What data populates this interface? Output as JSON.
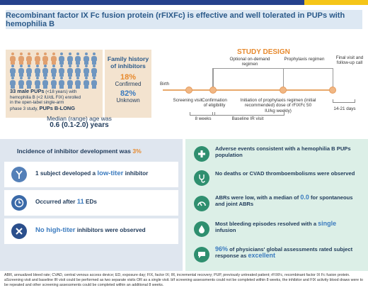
{
  "title": "Recombinant factor IX Fc fusion protein (rFIXFc) is effective and well tolerated in PUPs with hemophilia B",
  "cohort": {
    "line1": "33 male PUPs",
    "line1b": " (<18 years) with",
    "line2": "hemophilia B (<2 IU/dL FIX) enrolled",
    "line3": "in the open-label single-arm",
    "line4": "phase 3 study, ",
    "study_name": "PUPs B-LONG"
  },
  "family": {
    "heading": "Family history of inhibitors",
    "confirmed_pct": "18%",
    "confirmed_label": "Confirmed",
    "unknown_pct": "82%",
    "unknown_label": "Unknown"
  },
  "median": {
    "label": "Median (range) age was",
    "value": "0.6 (0.1-2.0) years"
  },
  "study_design": {
    "title": "STUDY DESIGN",
    "birth": "Birth",
    "screening": "Screening visit",
    "confirmation": "Confirmation of eligibility",
    "optional": "Optional on-demand regimen",
    "prophylaxis": "Prophylaxis regimen",
    "final": "Final visit and follow-up call",
    "initiation": "Initiation of prophylaxis regimen (initial recommended) dose of rFIXFc 50 IU/kg weekly)",
    "weeks8": "8 weeks",
    "baseline": "Baseline IR visit",
    "days": "14-21 days"
  },
  "left_results": {
    "incidence_label": "Incidence of inhibitor development was ",
    "incidence_value": "3%",
    "low_titer_pre": "1 subject developed a ",
    "low_titer_hl": "low-titer",
    "low_titer_post": " inhibitor",
    "occurred_pre": "Occurred after ",
    "occurred_hl": "11",
    "occurred_post": " EDs",
    "high_titer_hl": "No high-titer",
    "high_titer_post": " inhibitors were observed"
  },
  "right_results": {
    "ae": "Adverse events consistent with a hemophilia B PUPs population",
    "deaths": "No deaths or CVAD thromboembolisms were observed",
    "abr_pre": "ABRs were low, with a median of ",
    "abr_hl": "0.0",
    "abr_post": " for spontaneous and joint ABRs",
    "bleed_pre": "Most bleeding episodes resolved with a ",
    "bleed_hl": "single",
    "bleed_post": " infusion",
    "assess_hl": "96%",
    "assess_mid": " of physicians' global assessments rated subject response as ",
    "assess_hl2": "excellent"
  },
  "footnote": "ABR, annualized bleed rate; CVAD, central venous access device; ED, exposure day; FIX, factor IX; IR, incremental recovery; PUP, previously untreated patient; rFIXFc, recombinant factor IX Fc fusion protein. aScreening visit and baseline IR visit could be performed as two separate visits OR as a single visit. bIf screening assessments could not be completed within 8 weeks, the inhibitor and FIX activity blood draws were to be repeated and other screening assessments could be completed within an additional 8 weeks.",
  "colors": {
    "accent_orange": "#e78a2e",
    "accent_blue": "#3b7bbf",
    "navy": "#25418c",
    "yellow": "#f5c518"
  },
  "icons": [
    "antibody-icon",
    "clock-icon",
    "no-icon",
    "plus-icon",
    "stethoscope-icon",
    "rate-gauge-icon",
    "drop-icon",
    "speech-icon"
  ]
}
